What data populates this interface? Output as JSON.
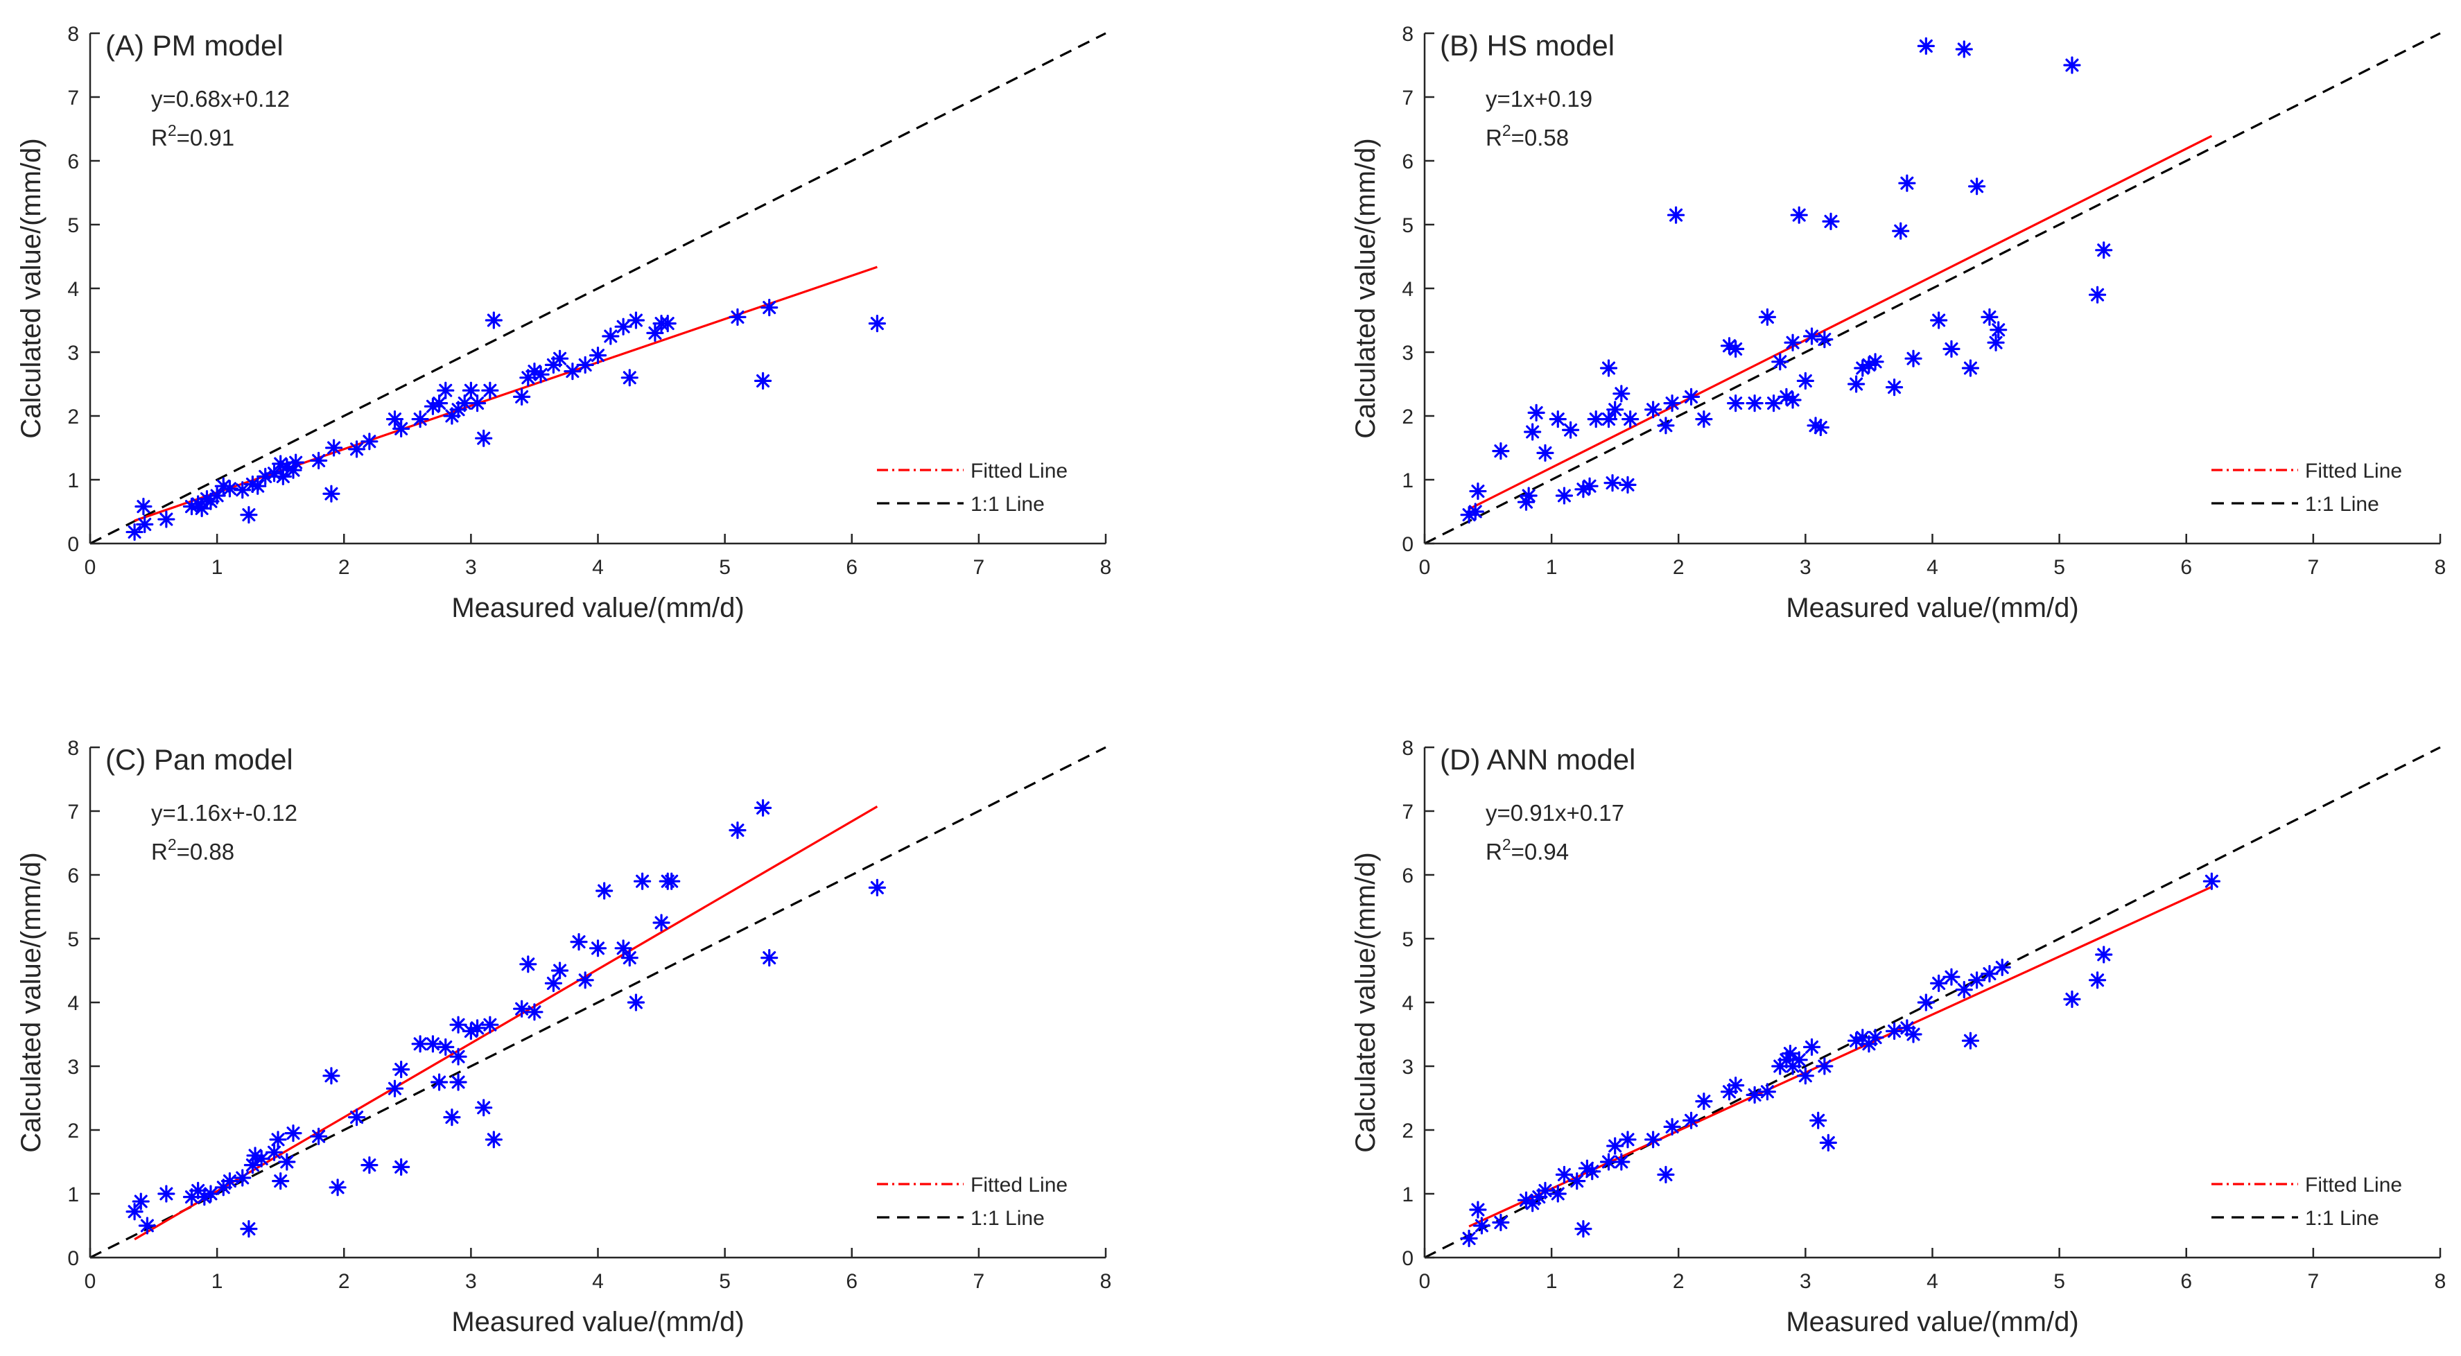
{
  "chart_data": [
    {
      "type": "scatter",
      "id": "A",
      "title": "(A)  PM model",
      "equation": "y=0.68x+0.12",
      "r2_prefix": "R",
      "r2_sup": "2",
      "r2_value": "=0.91",
      "xlabel": "Measured value/(mm/d)",
      "ylabel": "Calculated value/(mm/d)",
      "xlim": [
        0,
        8
      ],
      "ylim": [
        0,
        8
      ],
      "xticks": [
        "0",
        "1",
        "2",
        "3",
        "4",
        "5",
        "6",
        "7",
        "8"
      ],
      "yticks": [
        "0",
        "1",
        "2",
        "3",
        "4",
        "5",
        "6",
        "7",
        "8"
      ],
      "legend": [
        "Fitted Line",
        "1:1 Line"
      ],
      "legend_position": "bottom-right",
      "fit": {
        "slope": 0.68,
        "intercept": 0.12,
        "x_range": [
          0.35,
          6.2
        ]
      },
      "points": [
        [
          0.35,
          0.18
        ],
        [
          0.42,
          0.58
        ],
        [
          0.43,
          0.3
        ],
        [
          0.6,
          0.38
        ],
        [
          0.8,
          0.58
        ],
        [
          0.85,
          0.62
        ],
        [
          0.88,
          0.55
        ],
        [
          0.92,
          0.7
        ],
        [
          0.95,
          0.66
        ],
        [
          1.0,
          0.75
        ],
        [
          1.05,
          0.9
        ],
        [
          1.1,
          0.86
        ],
        [
          1.2,
          0.84
        ],
        [
          1.25,
          0.45
        ],
        [
          1.28,
          0.93
        ],
        [
          1.32,
          0.9
        ],
        [
          1.38,
          1.05
        ],
        [
          1.45,
          1.1
        ],
        [
          1.5,
          1.25
        ],
        [
          1.52,
          1.05
        ],
        [
          1.55,
          1.2
        ],
        [
          1.6,
          1.15
        ],
        [
          1.62,
          1.27
        ],
        [
          1.8,
          1.3
        ],
        [
          1.9,
          0.78
        ],
        [
          1.92,
          1.5
        ],
        [
          2.1,
          1.48
        ],
        [
          2.2,
          1.6
        ],
        [
          2.4,
          1.95
        ],
        [
          2.45,
          1.8
        ],
        [
          2.6,
          1.95
        ],
        [
          2.7,
          2.15
        ],
        [
          2.75,
          2.2
        ],
        [
          2.8,
          2.4
        ],
        [
          2.85,
          2.0
        ],
        [
          2.9,
          2.1
        ],
        [
          2.95,
          2.2
        ],
        [
          3.0,
          2.4
        ],
        [
          3.05,
          2.2
        ],
        [
          3.1,
          1.65
        ],
        [
          3.15,
          2.4
        ],
        [
          3.18,
          3.5
        ],
        [
          3.4,
          2.3
        ],
        [
          3.45,
          2.6
        ],
        [
          3.5,
          2.7
        ],
        [
          3.55,
          2.65
        ],
        [
          3.65,
          2.8
        ],
        [
          3.7,
          2.9
        ],
        [
          3.8,
          2.7
        ],
        [
          3.9,
          2.8
        ],
        [
          4.0,
          2.95
        ],
        [
          4.1,
          3.25
        ],
        [
          4.2,
          3.4
        ],
        [
          4.25,
          2.6
        ],
        [
          4.3,
          3.5
        ],
        [
          4.45,
          3.3
        ],
        [
          4.5,
          3.45
        ],
        [
          4.55,
          3.45
        ],
        [
          5.1,
          3.55
        ],
        [
          5.3,
          2.55
        ],
        [
          5.35,
          3.7
        ],
        [
          6.2,
          3.45
        ]
      ]
    },
    {
      "type": "scatter",
      "id": "B",
      "title": "(B)  HS model",
      "equation": "y=1x+0.19",
      "r2_prefix": "R",
      "r2_sup": "2",
      "r2_value": "=0.58",
      "xlabel": "Measured value/(mm/d)",
      "ylabel": "Calculated value/(mm/d)",
      "xlim": [
        0,
        8
      ],
      "ylim": [
        0,
        8
      ],
      "xticks": [
        "0",
        "1",
        "2",
        "3",
        "4",
        "5",
        "6",
        "7",
        "8"
      ],
      "yticks": [
        "0",
        "1",
        "2",
        "3",
        "4",
        "5",
        "6",
        "7",
        "8"
      ],
      "legend": [
        "Fitted Line",
        "1:1 Line"
      ],
      "legend_position": "bottom-right",
      "fit": {
        "slope": 1.0,
        "intercept": 0.19,
        "x_range": [
          0.35,
          6.2
        ]
      },
      "points": [
        [
          0.35,
          0.45
        ],
        [
          0.4,
          0.5
        ],
        [
          0.42,
          0.82
        ],
        [
          0.6,
          1.45
        ],
        [
          0.8,
          0.65
        ],
        [
          0.82,
          0.75
        ],
        [
          0.85,
          1.75
        ],
        [
          0.88,
          2.05
        ],
        [
          0.95,
          1.42
        ],
        [
          1.05,
          1.95
        ],
        [
          1.1,
          0.75
        ],
        [
          1.15,
          1.78
        ],
        [
          1.25,
          0.85
        ],
        [
          1.3,
          0.9
        ],
        [
          1.35,
          1.95
        ],
        [
          1.45,
          1.95
        ],
        [
          1.45,
          2.75
        ],
        [
          1.48,
          0.95
        ],
        [
          1.5,
          2.1
        ],
        [
          1.55,
          2.35
        ],
        [
          1.6,
          0.92
        ],
        [
          1.62,
          1.95
        ],
        [
          1.8,
          2.1
        ],
        [
          1.9,
          1.85
        ],
        [
          1.95,
          2.2
        ],
        [
          1.98,
          5.15
        ],
        [
          2.1,
          2.3
        ],
        [
          2.2,
          1.95
        ],
        [
          2.4,
          3.1
        ],
        [
          2.45,
          2.2
        ],
        [
          2.45,
          3.05
        ],
        [
          2.6,
          2.2
        ],
        [
          2.7,
          3.55
        ],
        [
          2.75,
          2.2
        ],
        [
          2.8,
          2.85
        ],
        [
          2.85,
          2.3
        ],
        [
          2.9,
          2.25
        ],
        [
          2.9,
          3.15
        ],
        [
          2.95,
          5.15
        ],
        [
          3.0,
          2.55
        ],
        [
          3.05,
          3.25
        ],
        [
          3.08,
          1.85
        ],
        [
          3.12,
          1.82
        ],
        [
          3.15,
          3.2
        ],
        [
          3.2,
          5.05
        ],
        [
          3.4,
          2.5
        ],
        [
          3.45,
          2.75
        ],
        [
          3.5,
          2.8
        ],
        [
          3.55,
          2.85
        ],
        [
          3.7,
          2.45
        ],
        [
          3.75,
          4.9
        ],
        [
          3.8,
          5.65
        ],
        [
          3.85,
          2.9
        ],
        [
          3.95,
          7.8
        ],
        [
          4.05,
          3.5
        ],
        [
          4.15,
          3.05
        ],
        [
          4.25,
          7.75
        ],
        [
          4.3,
          2.75
        ],
        [
          4.35,
          5.6
        ],
        [
          4.45,
          3.55
        ],
        [
          4.5,
          3.15
        ],
        [
          4.52,
          3.35
        ],
        [
          5.1,
          7.5
        ],
        [
          5.3,
          3.9
        ],
        [
          5.35,
          4.6
        ]
      ]
    },
    {
      "type": "scatter",
      "id": "C",
      "title": "(C)  Pan model",
      "equation": "y=1.16x+-0.12",
      "r2_prefix": "R",
      "r2_sup": "2",
      "r2_value": "=0.88",
      "xlabel": "Measured value/(mm/d)",
      "ylabel": "Calculated value/(mm/d)",
      "xlim": [
        0,
        8
      ],
      "ylim": [
        0,
        8
      ],
      "xticks": [
        "0",
        "1",
        "2",
        "3",
        "4",
        "5",
        "6",
        "7",
        "8"
      ],
      "yticks": [
        "0",
        "1",
        "2",
        "3",
        "4",
        "5",
        "6",
        "7",
        "8"
      ],
      "legend": [
        "Fitted Line",
        "1:1 Line"
      ],
      "legend_position": "bottom-right",
      "fit": {
        "slope": 1.16,
        "intercept": -0.12,
        "x_range": [
          0.35,
          6.2
        ]
      },
      "points": [
        [
          0.35,
          0.72
        ],
        [
          0.4,
          0.88
        ],
        [
          0.45,
          0.5
        ],
        [
          0.6,
          1.0
        ],
        [
          0.8,
          0.95
        ],
        [
          0.85,
          1.05
        ],
        [
          0.9,
          0.95
        ],
        [
          0.95,
          1.0
        ],
        [
          1.05,
          1.1
        ],
        [
          1.1,
          1.2
        ],
        [
          1.2,
          1.25
        ],
        [
          1.25,
          0.45
        ],
        [
          1.28,
          1.45
        ],
        [
          1.3,
          1.6
        ],
        [
          1.35,
          1.55
        ],
        [
          1.45,
          1.65
        ],
        [
          1.48,
          1.85
        ],
        [
          1.5,
          1.2
        ],
        [
          1.55,
          1.5
        ],
        [
          1.6,
          1.95
        ],
        [
          1.8,
          1.9
        ],
        [
          1.9,
          2.85
        ],
        [
          1.95,
          1.1
        ],
        [
          2.1,
          2.2
        ],
        [
          2.2,
          1.45
        ],
        [
          2.4,
          2.65
        ],
        [
          2.45,
          2.95
        ],
        [
          2.45,
          1.42
        ],
        [
          2.6,
          3.35
        ],
        [
          2.7,
          3.35
        ],
        [
          2.75,
          2.75
        ],
        [
          2.8,
          3.3
        ],
        [
          2.85,
          2.2
        ],
        [
          2.9,
          2.75
        ],
        [
          2.9,
          3.15
        ],
        [
          2.9,
          3.65
        ],
        [
          3.0,
          3.55
        ],
        [
          3.05,
          3.6
        ],
        [
          3.1,
          2.35
        ],
        [
          3.15,
          3.65
        ],
        [
          3.18,
          1.85
        ],
        [
          3.4,
          3.9
        ],
        [
          3.45,
          4.6
        ],
        [
          3.5,
          3.85
        ],
        [
          3.65,
          4.3
        ],
        [
          3.7,
          4.5
        ],
        [
          3.85,
          4.95
        ],
        [
          3.9,
          4.35
        ],
        [
          4.0,
          4.85
        ],
        [
          4.05,
          5.75
        ],
        [
          4.2,
          4.85
        ],
        [
          4.25,
          4.7
        ],
        [
          4.3,
          4.0
        ],
        [
          4.35,
          5.9
        ],
        [
          4.5,
          5.25
        ],
        [
          4.55,
          5.9
        ],
        [
          4.58,
          5.9
        ],
        [
          5.1,
          6.7
        ],
        [
          5.3,
          7.05
        ],
        [
          5.35,
          4.7
        ],
        [
          6.2,
          5.8
        ]
      ]
    },
    {
      "type": "scatter",
      "id": "D",
      "title": "(D)  ANN model",
      "equation": "y=0.91x+0.17",
      "r2_prefix": "R",
      "r2_sup": "2",
      "r2_value": "=0.94",
      "xlabel": "Measured value/(mm/d)",
      "ylabel": "Calculated value/(mm/d)",
      "xlim": [
        0,
        8
      ],
      "ylim": [
        0,
        8
      ],
      "xticks": [
        "0",
        "1",
        "2",
        "3",
        "4",
        "5",
        "6",
        "7",
        "8"
      ],
      "yticks": [
        "0",
        "1",
        "2",
        "3",
        "4",
        "5",
        "6",
        "7",
        "8"
      ],
      "legend": [
        "Fitted Line",
        "1:1 Line"
      ],
      "legend_position": "bottom-right",
      "fit": {
        "slope": 0.91,
        "intercept": 0.17,
        "x_range": [
          0.35,
          6.2
        ]
      },
      "points": [
        [
          0.35,
          0.3
        ],
        [
          0.42,
          0.75
        ],
        [
          0.45,
          0.5
        ],
        [
          0.6,
          0.55
        ],
        [
          0.8,
          0.9
        ],
        [
          0.85,
          0.85
        ],
        [
          0.9,
          0.95
        ],
        [
          0.95,
          1.05
        ],
        [
          1.05,
          1.0
        ],
        [
          1.1,
          1.3
        ],
        [
          1.2,
          1.2
        ],
        [
          1.25,
          0.45
        ],
        [
          1.28,
          1.4
        ],
        [
          1.32,
          1.35
        ],
        [
          1.45,
          1.5
        ],
        [
          1.5,
          1.75
        ],
        [
          1.55,
          1.5
        ],
        [
          1.6,
          1.85
        ],
        [
          1.8,
          1.85
        ],
        [
          1.9,
          1.3
        ],
        [
          1.95,
          2.05
        ],
        [
          2.1,
          2.15
        ],
        [
          2.2,
          2.45
        ],
        [
          2.4,
          2.6
        ],
        [
          2.45,
          2.7
        ],
        [
          2.6,
          2.55
        ],
        [
          2.7,
          2.6
        ],
        [
          2.8,
          3.0
        ],
        [
          2.85,
          3.1
        ],
        [
          2.88,
          3.2
        ],
        [
          2.9,
          3.0
        ],
        [
          2.95,
          3.1
        ],
        [
          3.0,
          2.85
        ],
        [
          3.05,
          3.3
        ],
        [
          3.1,
          2.15
        ],
        [
          3.15,
          3.0
        ],
        [
          3.18,
          1.8
        ],
        [
          3.4,
          3.4
        ],
        [
          3.45,
          3.45
        ],
        [
          3.5,
          3.35
        ],
        [
          3.55,
          3.45
        ],
        [
          3.7,
          3.55
        ],
        [
          3.8,
          3.6
        ],
        [
          3.85,
          3.5
        ],
        [
          3.95,
          4.0
        ],
        [
          4.05,
          4.3
        ],
        [
          4.15,
          4.4
        ],
        [
          4.25,
          4.2
        ],
        [
          4.3,
          3.4
        ],
        [
          4.35,
          4.35
        ],
        [
          4.45,
          4.45
        ],
        [
          4.55,
          4.55
        ],
        [
          5.1,
          4.05
        ],
        [
          5.3,
          4.35
        ],
        [
          5.35,
          4.75
        ],
        [
          6.2,
          5.9
        ]
      ]
    }
  ]
}
